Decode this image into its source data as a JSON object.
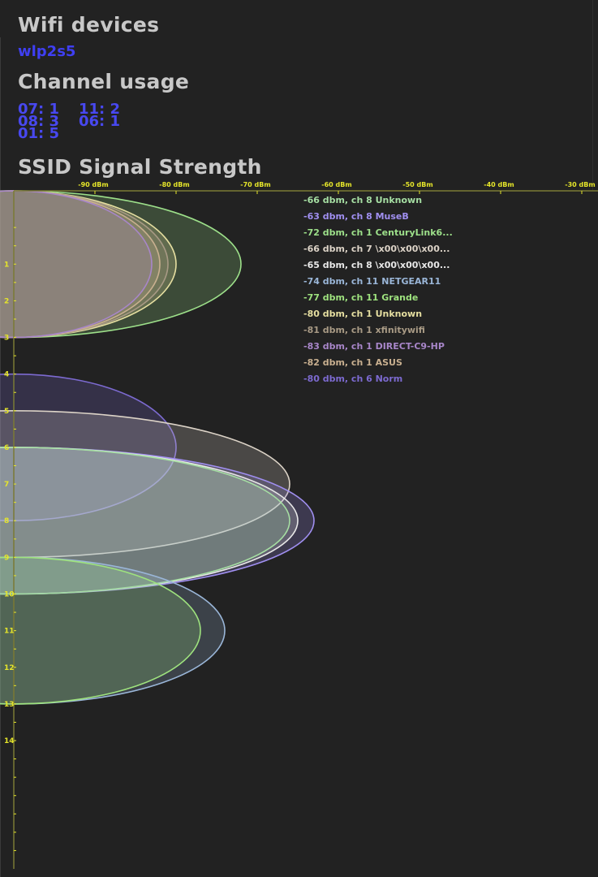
{
  "devices_section": {
    "title": "Wifi devices",
    "interface": "wlp2s5"
  },
  "channel_section": {
    "title": "Channel usage",
    "entries": [
      {
        "label": "07: 1"
      },
      {
        "label": "11: 2"
      },
      {
        "label": "08: 3"
      },
      {
        "label": "06: 1"
      },
      {
        "label": "01: 5"
      }
    ]
  },
  "signal_section": {
    "title": "SSID Signal Strength"
  },
  "colors": {
    "background": "#222222",
    "heading": "#c8c8c8",
    "device_text": "#3f3ff2",
    "axis": "#e6e62a",
    "axis_line": "#7a7a34"
  },
  "chart_data": {
    "type": "scatter",
    "title": "SSID Signal Strength",
    "xlabel": "",
    "ylabel": "",
    "x_ticks": [
      "-90 dBm",
      "-80 dBm",
      "-70 dBm",
      "-60 dBm",
      "-50 dBm",
      "-40 dBm",
      "-30 dBm"
    ],
    "x_tick_values": [
      -90,
      -80,
      -70,
      -60,
      -50,
      -40,
      -30
    ],
    "xlim": [
      -100,
      -29.8
    ],
    "y_ticks": [
      1,
      2,
      3,
      4,
      5,
      6,
      7,
      8,
      9,
      10,
      11,
      12,
      13,
      14
    ],
    "ylim": [
      -1,
      17.5
    ],
    "legend_position": "top-right",
    "grid": false,
    "series": [
      {
        "label": "-66 dbm, ch 8 Unknown",
        "dbm": -66,
        "channel": 8,
        "color": "#a6dfa3"
      },
      {
        "label": "-63 dbm, ch 8 MuseB",
        "dbm": -63,
        "channel": 8,
        "color": "#a08ff0"
      },
      {
        "label": "-72 dbm, ch 1 CenturyLink6...",
        "dbm": -72,
        "channel": 1,
        "color": "#9de08a"
      },
      {
        "label": "-66 dbm, ch 7 \\x00\\x00\\x00...",
        "dbm": -66,
        "channel": 7,
        "color": "#dcd3c7"
      },
      {
        "label": "-65 dbm, ch 8 \\x00\\x00\\x00...",
        "dbm": -65,
        "channel": 8,
        "color": "#e8e8e8"
      },
      {
        "label": "-74 dbm, ch 11 NETGEAR11",
        "dbm": -74,
        "channel": 11,
        "color": "#9ab6d8"
      },
      {
        "label": "-77 dbm, ch 11 Grande",
        "dbm": -77,
        "channel": 11,
        "color": "#9ee27e"
      },
      {
        "label": "-80 dbm, ch 1 Unknown",
        "dbm": -80,
        "channel": 1,
        "color": "#e6dfa1"
      },
      {
        "label": "-81 dbm, ch 1 xfinitywifi",
        "dbm": -81,
        "channel": 1,
        "color": "#a89a85"
      },
      {
        "label": "-83 dbm, ch 1 DIRECT-C9-HP",
        "dbm": -83,
        "channel": 1,
        "color": "#a886c9"
      },
      {
        "label": "-82 dbm, ch 1 ASUS",
        "dbm": -82,
        "channel": 1,
        "color": "#c9b090"
      },
      {
        "label": "-80 dbm, ch 6 Norm",
        "dbm": -80,
        "channel": 6,
        "color": "#7c6ad0"
      }
    ],
    "draw_order": [
      2,
      7,
      8,
      10,
      9,
      11,
      3,
      1,
      4,
      0,
      5,
      6
    ]
  }
}
